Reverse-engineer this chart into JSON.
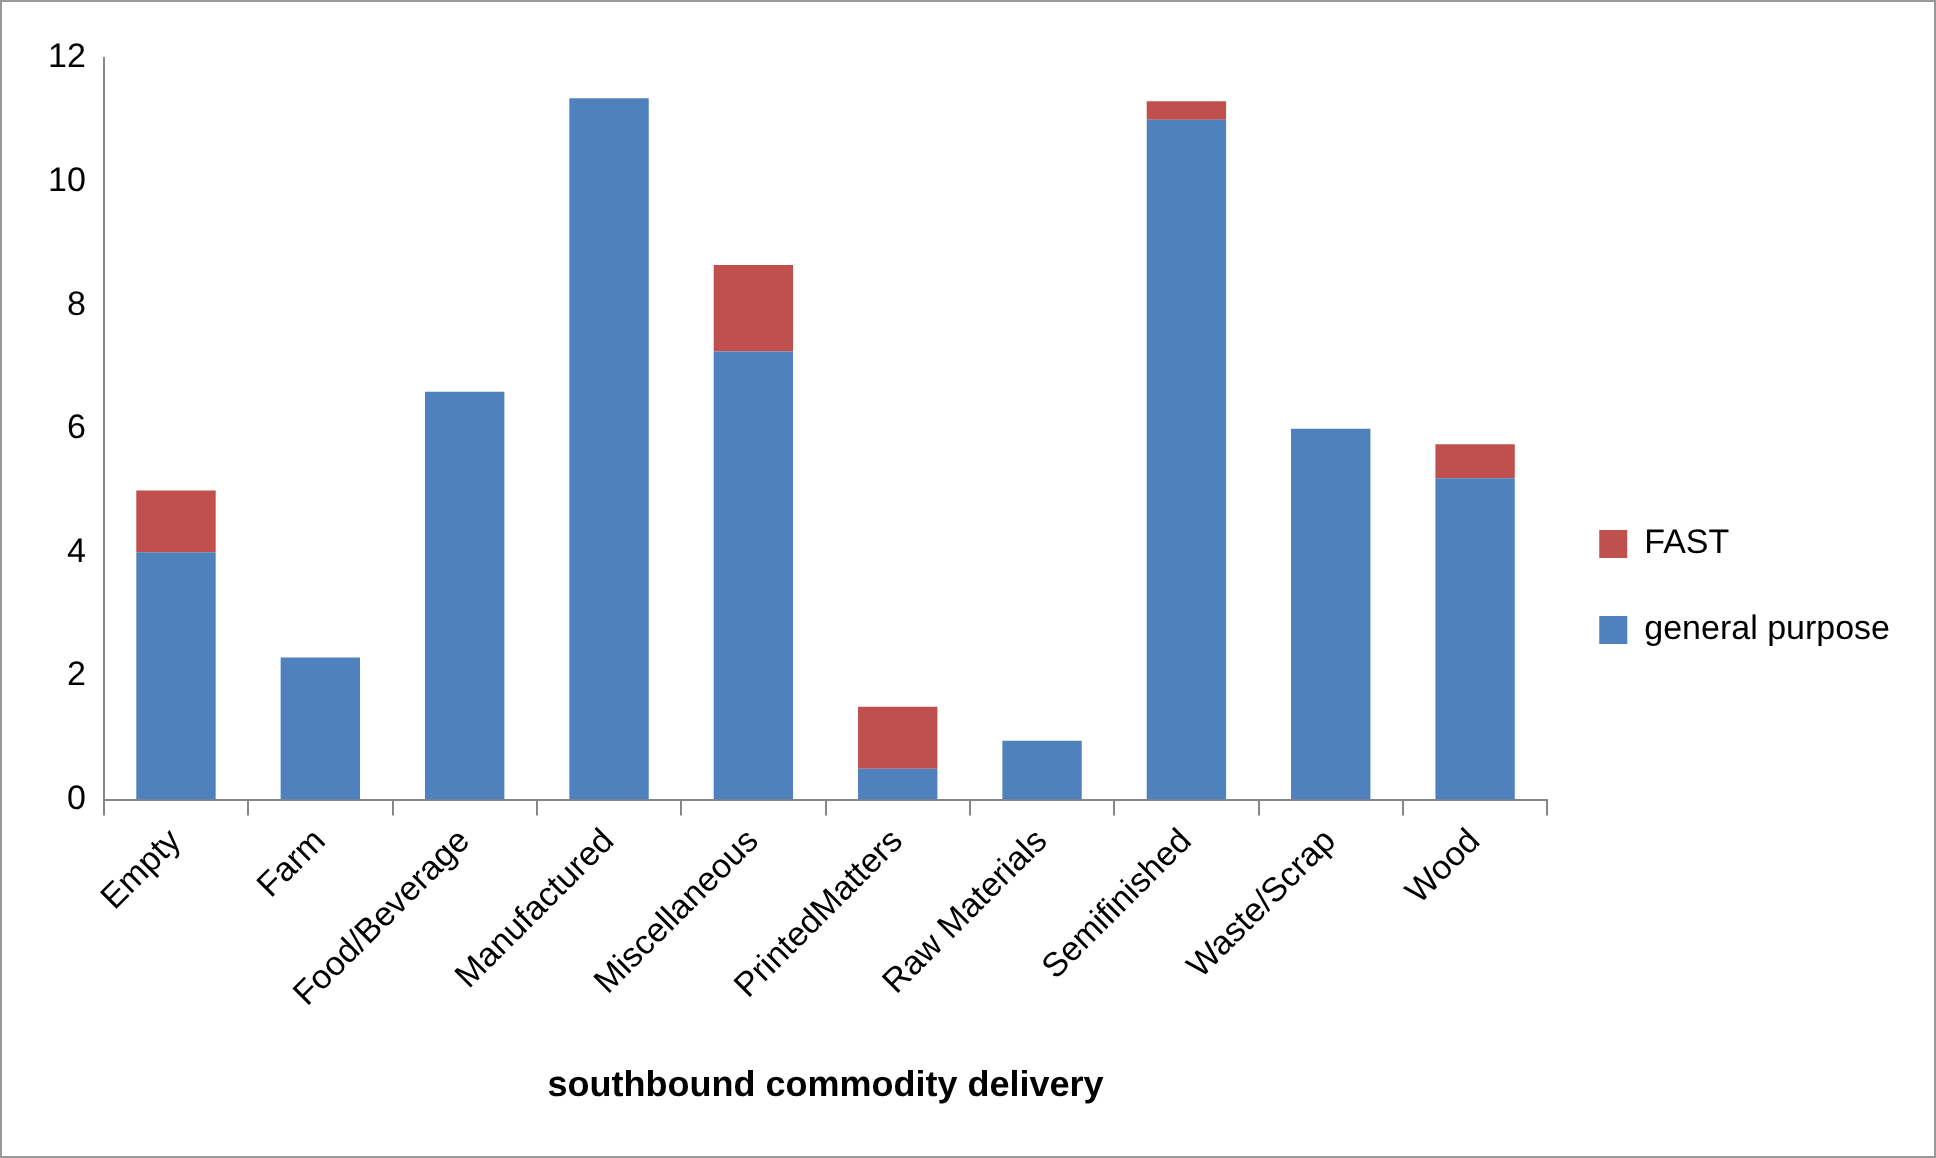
{
  "chart_data": {
    "type": "bar",
    "stacked": true,
    "xlabel": "southbound commodity delivery",
    "categories": [
      "Empty",
      "Farm",
      "Food/Beverage",
      "Manufactured",
      "Miscellaneous",
      "PrintedMatters",
      "Raw Materials",
      "Semifinished",
      "Waste/Scrap",
      "Wood"
    ],
    "series": [
      {
        "name": "general purpose",
        "color": "#4f81bd",
        "values": [
          4.0,
          2.3,
          6.6,
          11.35,
          7.25,
          0.5,
          0.95,
          11.0,
          6.0,
          5.2
        ]
      },
      {
        "name": "FAST",
        "color": "#c0504d",
        "values": [
          1.0,
          null,
          null,
          null,
          1.4,
          1.0,
          null,
          0.3,
          null,
          0.55
        ]
      }
    ],
    "ylim": [
      0,
      12
    ],
    "yticks": [
      0,
      2,
      4,
      6,
      8,
      10,
      12
    ],
    "grid": false,
    "legend": "right"
  }
}
